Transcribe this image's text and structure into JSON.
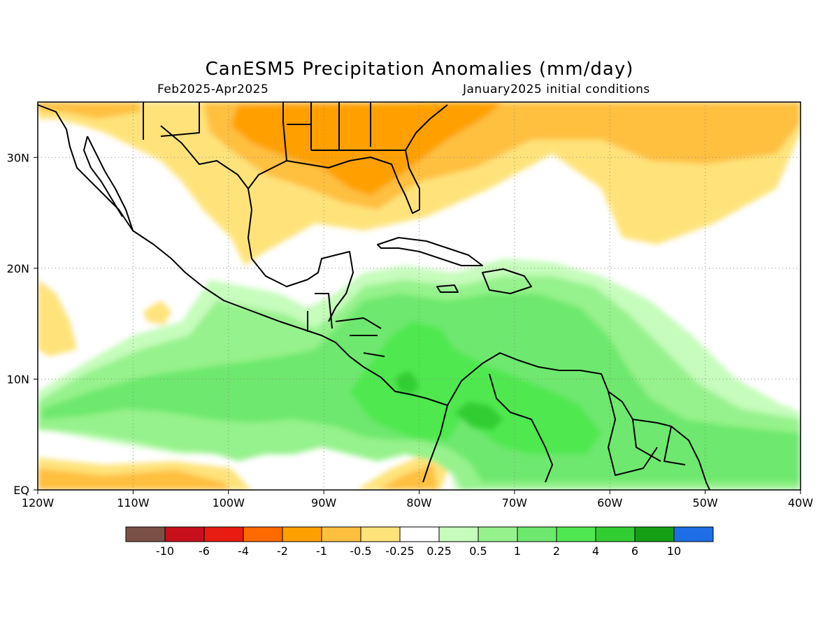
{
  "title": "CanESM5 Precipitation Anomalies (mm/day)",
  "subtitle_left": "Feb2025-Apr2025",
  "subtitle_right": "January2025 initial conditions",
  "map": {
    "lon_range": [
      -120,
      -40
    ],
    "lat_range": [
      0,
      35
    ],
    "x_tick_labels": [
      "120W",
      "110W",
      "100W",
      "90W",
      "80W",
      "70W",
      "60W",
      "50W",
      "40W"
    ],
    "y_tick_labels": [
      "EQ",
      "10N",
      "20N",
      "30N"
    ],
    "grid": "dotted"
  },
  "colorbar": {
    "labels": [
      "-10",
      "-6",
      "-4",
      "-2",
      "-1",
      "-0.5",
      "-0.25",
      "0.25",
      "0.5",
      "1",
      "2",
      "4",
      "6",
      "10"
    ],
    "colors": [
      "#7b5046",
      "#c8101c",
      "#e81c10",
      "#ff6a00",
      "#ffa000",
      "#ffc040",
      "#ffe37a",
      "#ffffff",
      "#c6fcbc",
      "#96f28c",
      "#6ee86e",
      "#50e850",
      "#32cd32",
      "#14a014",
      "#1e6ee6"
    ]
  }
}
